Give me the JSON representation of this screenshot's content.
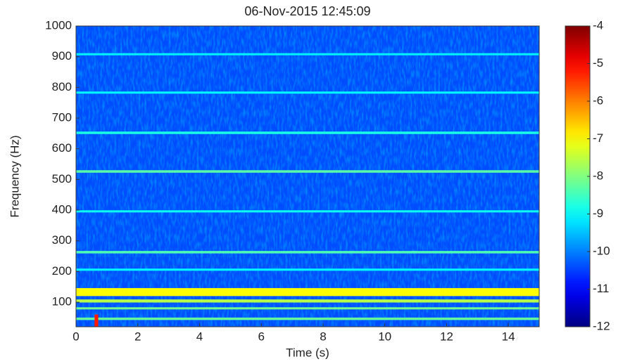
{
  "chart_data": {
    "type": "spectrogram",
    "title": "06-Nov-2015 12:45:09",
    "xlabel": "Time (s)",
    "ylabel": "Frequency (Hz)",
    "xlim": [
      0,
      15
    ],
    "xticks": [
      0,
      2,
      4,
      6,
      8,
      10,
      12,
      14
    ],
    "ylim": [
      20,
      1000
    ],
    "yticks": [
      100,
      200,
      300,
      400,
      500,
      600,
      700,
      800,
      900,
      1000
    ],
    "colormap": "jet",
    "clim": [
      -12,
      -4
    ],
    "cticks": [
      -12,
      -11,
      -10,
      -9,
      -8,
      -7,
      -6,
      -5,
      -4
    ],
    "background_level": -10.4,
    "bands": [
      {
        "freq": 908,
        "width": 7,
        "level": -9.1
      },
      {
        "freq": 783,
        "width": 7,
        "level": -9.0
      },
      {
        "freq": 652,
        "width": 8,
        "level": -8.8
      },
      {
        "freq": 526,
        "width": 8,
        "level": -8.3
      },
      {
        "freq": 396,
        "width": 7,
        "level": -8.9
      },
      {
        "freq": 263,
        "width": 8,
        "level": -8.4
      },
      {
        "freq": 206,
        "width": 7,
        "level": -9.0
      },
      {
        "freq": 133,
        "width": 26,
        "level": -7.0
      },
      {
        "freq": 104,
        "width": 10,
        "level": -7.6
      },
      {
        "freq": 80,
        "width": 7,
        "level": -8.1
      },
      {
        "freq": 46,
        "width": 8,
        "level": -8.2
      }
    ],
    "transients": [
      {
        "t": [
          0.6,
          0.72
        ],
        "f": [
          20,
          60
        ],
        "level": -5.2
      }
    ]
  }
}
